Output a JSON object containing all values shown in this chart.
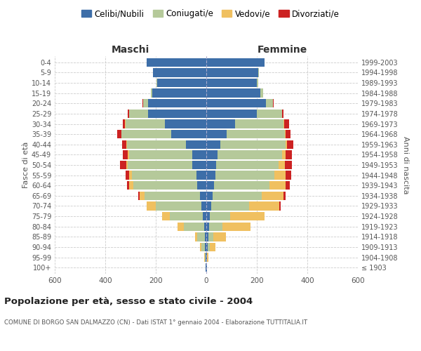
{
  "age_groups": [
    "100+",
    "95-99",
    "90-94",
    "85-89",
    "80-84",
    "75-79",
    "70-74",
    "65-69",
    "60-64",
    "55-59",
    "50-54",
    "45-49",
    "40-44",
    "35-39",
    "30-34",
    "25-29",
    "20-24",
    "15-19",
    "10-14",
    "5-9",
    "0-4"
  ],
  "birth_years": [
    "≤ 1903",
    "1904-1908",
    "1909-1913",
    "1914-1918",
    "1919-1923",
    "1924-1928",
    "1929-1933",
    "1934-1938",
    "1939-1943",
    "1944-1948",
    "1949-1953",
    "1954-1958",
    "1959-1963",
    "1964-1968",
    "1969-1973",
    "1974-1978",
    "1979-1983",
    "1984-1988",
    "1989-1993",
    "1994-1998",
    "1999-2003"
  ],
  "males": {
    "celibi": [
      2,
      2,
      5,
      5,
      8,
      15,
      20,
      25,
      35,
      40,
      55,
      55,
      80,
      140,
      165,
      230,
      230,
      215,
      195,
      210,
      235
    ],
    "coniugati": [
      1,
      3,
      15,
      30,
      80,
      130,
      180,
      220,
      255,
      255,
      255,
      250,
      235,
      195,
      155,
      75,
      20,
      5,
      3,
      2,
      1
    ],
    "vedovi": [
      0,
      2,
      5,
      10,
      25,
      30,
      35,
      20,
      15,
      10,
      8,
      5,
      3,
      2,
      1,
      1,
      0,
      0,
      0,
      0,
      0
    ],
    "divorziati": [
      0,
      0,
      0,
      0,
      0,
      0,
      0,
      5,
      10,
      15,
      25,
      20,
      15,
      15,
      10,
      5,
      2,
      0,
      0,
      0,
      0
    ]
  },
  "females": {
    "nubili": [
      2,
      2,
      5,
      8,
      10,
      15,
      20,
      25,
      30,
      35,
      40,
      45,
      55,
      80,
      115,
      200,
      235,
      215,
      200,
      205,
      230
    ],
    "coniugate": [
      1,
      2,
      10,
      20,
      55,
      80,
      150,
      195,
      220,
      235,
      245,
      255,
      260,
      230,
      190,
      100,
      30,
      10,
      5,
      2,
      1
    ],
    "vedove": [
      0,
      5,
      20,
      50,
      110,
      135,
      120,
      85,
      65,
      45,
      25,
      15,
      5,
      3,
      2,
      1,
      0,
      0,
      0,
      0,
      0
    ],
    "divorziate": [
      0,
      0,
      0,
      0,
      0,
      0,
      5,
      10,
      15,
      20,
      30,
      25,
      25,
      20,
      20,
      5,
      2,
      0,
      0,
      0,
      0
    ]
  },
  "colors": {
    "celibi": "#3d6ea8",
    "coniugati": "#b5c99a",
    "vedovi": "#f0c060",
    "divorziati": "#cc2222"
  },
  "xlim": 600,
  "title": "Popolazione per età, sesso e stato civile - 2004",
  "subtitle": "COMUNE DI BORGO SAN DALMAZZO (CN) - Dati ISTAT 1° gennaio 2004 - Elaborazione TUTTITALIA.IT",
  "legend_labels": [
    "Celibi/Nubili",
    "Coniugati/e",
    "Vedovi/e",
    "Divorziati/e"
  ],
  "xlabel_left": "Maschi",
  "xlabel_right": "Femmine",
  "ylabel_left": "Fasce di età",
  "ylabel_right": "Anni di nascita"
}
